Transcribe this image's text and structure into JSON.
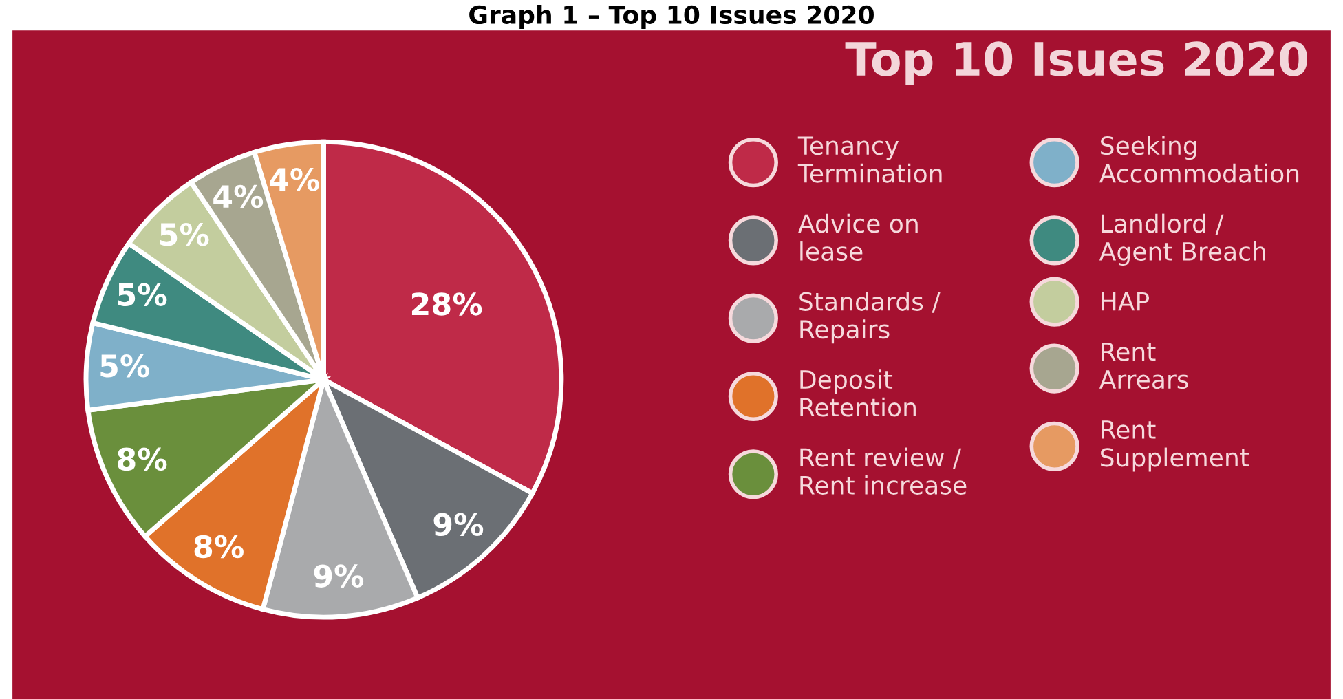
{
  "chart_data": {
    "type": "pie",
    "title": "Graph 1 – Top 10 Issues 2020",
    "subtitle": "Top 10 Isues 2020",
    "categories": [
      "Tenancy\nTermination",
      "Advice on\nlease",
      "Standards /\nRepairs",
      "Deposit\nRetention",
      "Rent review /\nRent increase",
      "Seeking\nAccommodation",
      "Landlord /\nAgent Breach",
      "HAP",
      "Rent\nArrears",
      "Rent\nSupplement"
    ],
    "values": [
      28,
      9,
      9,
      8,
      8,
      5,
      5,
      5,
      4,
      4
    ],
    "value_labels": [
      "28%",
      "9%",
      "9%",
      "8%",
      "8%",
      "5%",
      "5%",
      "5%",
      "4%",
      "4%"
    ],
    "colors": [
      "#bf2a48",
      "#6b6f74",
      "#a9aaac",
      "#e0722a",
      "#6a8f3c",
      "#7fb0c9",
      "#3f8a80",
      "#c3cd9e",
      "#a7a690",
      "#e69a62"
    ],
    "legend": "right"
  }
}
